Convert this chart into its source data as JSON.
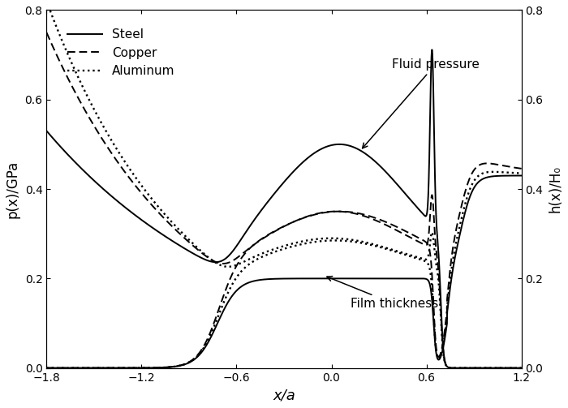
{
  "xlim": [
    -1.8,
    1.2
  ],
  "ylim": [
    0.0,
    0.8
  ],
  "xlabel": "x/a",
  "ylabel_left": "p(x)/GPa",
  "ylabel_right": "h(x)/H₀",
  "xticks": [
    -1.8,
    -1.2,
    -0.6,
    0.0,
    0.6,
    1.2
  ],
  "yticks": [
    0.0,
    0.2,
    0.4,
    0.6,
    0.8
  ],
  "legend_entries": [
    "Steel",
    "Copper",
    "Aluminum"
  ],
  "annotation_pressure": "Fluid pressure",
  "annotation_film": "Film thickness",
  "figsize": [
    7.0,
    5.03
  ],
  "dpi": 100
}
